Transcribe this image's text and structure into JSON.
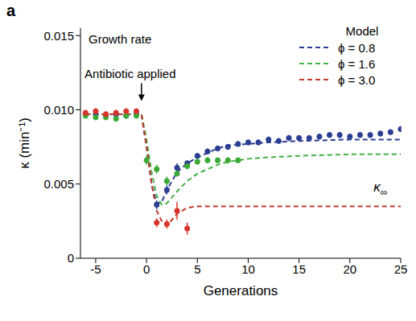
{
  "chart_data": {
    "type": "line",
    "panel_label": "a",
    "title": "Growth rate",
    "x_label": "Generations",
    "y_label": "κ (min⁻¹)",
    "legend": "upper right",
    "legend_title": "Model",
    "xlim": [
      -6.5,
      25
    ],
    "xticks": [
      -5,
      0,
      5,
      10,
      15,
      20,
      25
    ],
    "ylim": [
      0,
      0.0155
    ],
    "yticks": [
      0,
      0.005,
      {
        "value": 0.01,
        "label": "0.010"
      },
      0.015
    ],
    "annotations": [
      {
        "text": "Antibiotic applied",
        "x": -0.5,
        "y": 0.0106
      },
      {
        "text": "κ∞",
        "x": 23,
        "y": 0.0045
      }
    ],
    "series": [
      {
        "name": "ϕ = 0.8",
        "type": "line",
        "line_style": "dashed",
        "color": "#2c3e91",
        "x": [
          -6,
          -0.5,
          0,
          0.5,
          1,
          1.5,
          2,
          3,
          4,
          5,
          6,
          7,
          8,
          10,
          12,
          15,
          20,
          25
        ],
        "values": [
          0.0097,
          0.0097,
          0.0075,
          0.005,
          0.0037,
          0.0038,
          0.0046,
          0.0058,
          0.0064,
          0.0068,
          0.0071,
          0.0074,
          0.0076,
          0.0077,
          0.0078,
          0.0079,
          0.008,
          0.008
        ]
      },
      {
        "name": "ϕ = 1.6",
        "type": "line",
        "line_style": "dashed",
        "color": "#45b045",
        "x": [
          -6,
          -0.5,
          0,
          0.5,
          1,
          1.5,
          2,
          3,
          4,
          5,
          6,
          7,
          8,
          10,
          12,
          15,
          20,
          25
        ],
        "values": [
          0.0097,
          0.0097,
          0.008,
          0.0058,
          0.0042,
          0.0036,
          0.0037,
          0.0045,
          0.0052,
          0.0057,
          0.006,
          0.0063,
          0.0065,
          0.0067,
          0.0068,
          0.0069,
          0.007,
          0.007
        ]
      },
      {
        "name": "ϕ = 3.0",
        "type": "line",
        "line_style": "dashed",
        "color": "#c0392b",
        "x": [
          -6,
          -0.5,
          0,
          0.5,
          1,
          1.5,
          2,
          3,
          4,
          5,
          6,
          7,
          8,
          10,
          12,
          15,
          20,
          25
        ],
        "values": [
          0.0097,
          0.0097,
          0.0075,
          0.005,
          0.0032,
          0.0025,
          0.0022,
          0.003,
          0.0034,
          0.0035,
          0.0035,
          0.0035,
          0.0035,
          0.0035,
          0.0035,
          0.0035,
          0.0035,
          0.0035
        ]
      },
      {
        "type": "scatter",
        "marker": "circle",
        "color": "#2c3e91",
        "x": [
          -6,
          -5,
          -4,
          -3,
          -2,
          -1,
          1,
          2,
          3,
          4,
          5,
          6,
          7,
          8,
          9,
          10,
          11,
          12,
          13,
          14,
          15,
          16,
          17,
          18,
          19,
          20,
          21,
          22,
          23,
          24,
          25
        ],
        "values": [
          0.0097,
          0.0097,
          0.0096,
          0.0097,
          0.0096,
          0.0097,
          0.0036,
          0.0046,
          0.0061,
          0.0064,
          0.0069,
          0.0072,
          0.0074,
          0.0075,
          0.0077,
          0.0078,
          0.0078,
          0.008,
          0.0079,
          0.0081,
          0.0081,
          0.0081,
          0.0082,
          0.0083,
          0.0083,
          0.0082,
          0.0083,
          0.0083,
          0.0084,
          0.0085,
          0.0087
        ],
        "errors": [
          0.0002,
          0.0002,
          0.0002,
          0.0002,
          0.0002,
          0.0002,
          0.0003,
          0.0003,
          0.0003,
          0.0002,
          0.0002,
          0.0002,
          0.0002,
          0.0002,
          0.0002,
          0.0002,
          0.0002,
          0.0002,
          0.0002,
          0.0002,
          0.0002,
          0.0002,
          0.0002,
          0.0002,
          0.0002,
          0.0002,
          0.0002,
          0.0002,
          0.0002,
          0.0002,
          0.0002
        ]
      },
      {
        "type": "scatter",
        "marker": "circle",
        "color": "#3aaa35",
        "x": [
          -6,
          -5,
          -4,
          -3,
          -2,
          -1,
          0,
          1,
          2,
          3,
          4,
          5,
          6,
          7,
          8,
          9
        ],
        "values": [
          0.0096,
          0.0095,
          0.0095,
          0.0094,
          0.0096,
          0.0096,
          0.0066,
          0.006,
          0.0052,
          0.0057,
          0.0062,
          0.0065,
          0.0066,
          0.0066,
          0.0066,
          0.0066
        ],
        "errors": [
          0.0002,
          0.0002,
          0.0002,
          0.0002,
          0.0002,
          0.0002,
          0.0003,
          0.0003,
          0.0003,
          0.0002,
          0.0002,
          0.0002,
          0.0002,
          0.0002,
          0.0002,
          0.0002
        ]
      },
      {
        "type": "scatter",
        "marker": "circle",
        "color": "#d9342b",
        "x": [
          -6,
          -5,
          -4,
          -3,
          -2,
          -1,
          1,
          2,
          3,
          4
        ],
        "values": [
          0.0098,
          0.0099,
          0.0097,
          0.0098,
          0.0099,
          0.0099,
          0.0024,
          0.0023,
          0.0032,
          0.002
        ],
        "errors": [
          0.0002,
          0.0002,
          0.0002,
          0.0002,
          0.0002,
          0.0002,
          0.0003,
          0.0003,
          0.0006,
          0.0004
        ]
      }
    ]
  }
}
